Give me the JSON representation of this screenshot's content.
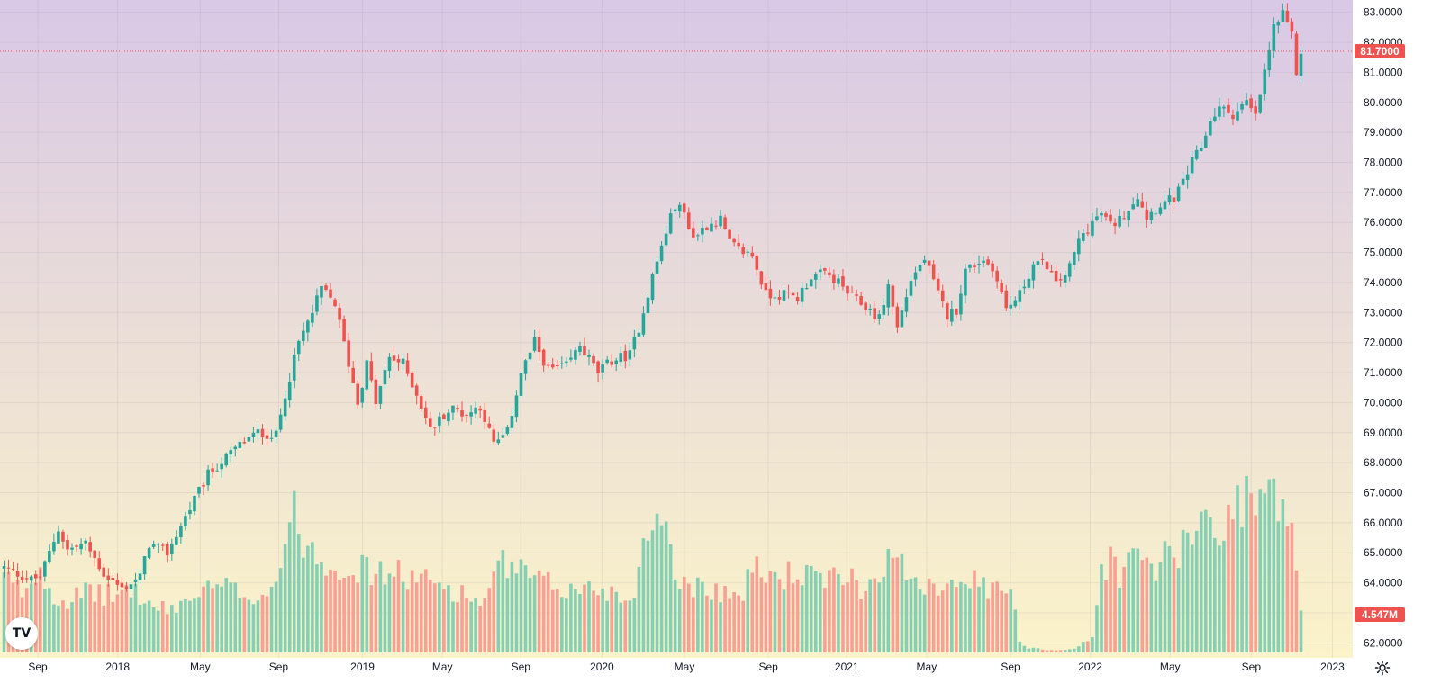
{
  "chart_data": {
    "type": "candlestick",
    "title": "",
    "interval": "1W",
    "price_axis": {
      "ylim": [
        61.5,
        83.2
      ],
      "ticks": [
        "62.0000",
        "63.0000",
        "64.0000",
        "65.0000",
        "66.0000",
        "67.0000",
        "68.0000",
        "69.0000",
        "70.0000",
        "71.0000",
        "72.0000",
        "73.0000",
        "74.0000",
        "75.0000",
        "76.0000",
        "77.0000",
        "78.0000",
        "79.0000",
        "80.0000",
        "81.0000",
        "82.0000",
        "83.0000"
      ]
    },
    "time_axis": {
      "labels": [
        "Sep",
        "2018",
        "May",
        "Sep",
        "2019",
        "May",
        "Sep",
        "2020",
        "May",
        "Sep",
        "2021",
        "May",
        "Sep",
        "2022",
        "May",
        "Sep",
        "2023"
      ]
    },
    "last_price": {
      "value": 81.7,
      "label": "81.7000"
    },
    "last_volume": {
      "value": 4.547,
      "label": "4.547M"
    },
    "volume_max_m": 38,
    "colors": {
      "up": "#26a69a",
      "down": "#ef5350",
      "up_volume": "#86cfb2",
      "down_volume": "#f7a093",
      "bg_top": "#d9c8e6",
      "bg_bottom": "#fbf3c9"
    },
    "close_anchors": [
      [
        0,
        64.5
      ],
      [
        6,
        64.1
      ],
      [
        8,
        64.2
      ],
      [
        12,
        65.8
      ],
      [
        14,
        65.1
      ],
      [
        18,
        65.3
      ],
      [
        22,
        64.3
      ],
      [
        26,
        63.8
      ],
      [
        30,
        64.2
      ],
      [
        32,
        65.3
      ],
      [
        36,
        65.0
      ],
      [
        40,
        66.2
      ],
      [
        45,
        67.6
      ],
      [
        52,
        68.6
      ],
      [
        56,
        69.0
      ],
      [
        60,
        68.9
      ],
      [
        62,
        70.3
      ],
      [
        65,
        72.0
      ],
      [
        68,
        73.0
      ],
      [
        70,
        73.8
      ],
      [
        73,
        73.3
      ],
      [
        76,
        71.3
      ],
      [
        78,
        70.0
      ],
      [
        80,
        71.3
      ],
      [
        82,
        70.0
      ],
      [
        85,
        71.5
      ],
      [
        88,
        71.3
      ],
      [
        91,
        70.3
      ],
      [
        94,
        69.1
      ],
      [
        97,
        69.6
      ],
      [
        99,
        69.8
      ],
      [
        102,
        69.6
      ],
      [
        105,
        69.9
      ],
      [
        108,
        68.6
      ],
      [
        111,
        69.0
      ],
      [
        114,
        71.0
      ],
      [
        117,
        72.0
      ],
      [
        120,
        71.1
      ],
      [
        124,
        71.2
      ],
      [
        127,
        71.9
      ],
      [
        131,
        71.0
      ],
      [
        134,
        71.4
      ],
      [
        138,
        71.6
      ],
      [
        140,
        72.5
      ],
      [
        143,
        74.2
      ],
      [
        146,
        75.7
      ],
      [
        148,
        76.6
      ],
      [
        150,
        76.3
      ],
      [
        152,
        75.5
      ],
      [
        155,
        75.9
      ],
      [
        158,
        76.1
      ],
      [
        160,
        75.3
      ],
      [
        162,
        75.1
      ],
      [
        165,
        74.9
      ],
      [
        168,
        73.6
      ],
      [
        172,
        73.6
      ],
      [
        175,
        73.5
      ],
      [
        178,
        74.2
      ],
      [
        181,
        74.3
      ],
      [
        184,
        74.0
      ],
      [
        187,
        73.5
      ],
      [
        190,
        73.2
      ],
      [
        193,
        72.8
      ],
      [
        195,
        73.9
      ],
      [
        197,
        72.5
      ],
      [
        200,
        74.1
      ],
      [
        203,
        74.8
      ],
      [
        206,
        73.6
      ],
      [
        208,
        72.9
      ],
      [
        210,
        73.1
      ],
      [
        212,
        74.4
      ],
      [
        216,
        74.8
      ],
      [
        219,
        74.2
      ],
      [
        221,
        73.1
      ],
      [
        224,
        73.6
      ],
      [
        227,
        74.6
      ],
      [
        230,
        74.6
      ],
      [
        232,
        73.9
      ],
      [
        235,
        74.5
      ],
      [
        237,
        75.4
      ],
      [
        240,
        76.0
      ],
      [
        242,
        76.3
      ],
      [
        244,
        75.9
      ],
      [
        246,
        76.1
      ],
      [
        248,
        76.5
      ],
      [
        250,
        76.9
      ],
      [
        252,
        76.2
      ],
      [
        255,
        76.6
      ],
      [
        258,
        76.8
      ],
      [
        260,
        77.3
      ],
      [
        262,
        78.0
      ],
      [
        264,
        78.5
      ],
      [
        266,
        79.4
      ],
      [
        268,
        79.8
      ],
      [
        271,
        79.6
      ],
      [
        274,
        80.0
      ],
      [
        276,
        79.5
      ],
      [
        278,
        81.0
      ],
      [
        280,
        82.5
      ],
      [
        282,
        82.9
      ],
      [
        284,
        82.2
      ],
      [
        285,
        81.0
      ],
      [
        286,
        81.7
      ]
    ],
    "volume_anchors": [
      [
        0,
        16
      ],
      [
        4,
        13
      ],
      [
        8,
        18
      ],
      [
        12,
        11
      ],
      [
        16,
        12
      ],
      [
        20,
        13
      ],
      [
        24,
        12
      ],
      [
        28,
        14
      ],
      [
        32,
        10
      ],
      [
        36,
        9
      ],
      [
        40,
        11
      ],
      [
        44,
        13
      ],
      [
        48,
        14
      ],
      [
        52,
        13
      ],
      [
        56,
        12
      ],
      [
        60,
        15
      ],
      [
        62,
        25
      ],
      [
        64,
        29
      ],
      [
        66,
        25
      ],
      [
        70,
        20
      ],
      [
        74,
        19
      ],
      [
        78,
        18
      ],
      [
        82,
        17
      ],
      [
        86,
        17
      ],
      [
        90,
        16
      ],
      [
        94,
        15
      ],
      [
        98,
        14
      ],
      [
        102,
        12
      ],
      [
        106,
        11
      ],
      [
        110,
        19
      ],
      [
        114,
        17
      ],
      [
        118,
        15
      ],
      [
        122,
        14
      ],
      [
        126,
        13
      ],
      [
        130,
        14
      ],
      [
        134,
        13
      ],
      [
        138,
        11
      ],
      [
        142,
        25
      ],
      [
        144,
        33
      ],
      [
        146,
        27
      ],
      [
        148,
        19
      ],
      [
        150,
        14
      ],
      [
        154,
        15
      ],
      [
        158,
        13
      ],
      [
        162,
        12
      ],
      [
        166,
        18
      ],
      [
        170,
        16
      ],
      [
        174,
        17
      ],
      [
        178,
        16
      ],
      [
        182,
        15
      ],
      [
        186,
        17
      ],
      [
        190,
        13
      ],
      [
        194,
        20
      ],
      [
        198,
        18
      ],
      [
        202,
        16
      ],
      [
        206,
        14
      ],
      [
        210,
        17
      ],
      [
        214,
        15
      ],
      [
        218,
        13
      ],
      [
        222,
        14
      ],
      [
        224,
        2
      ],
      [
        226,
        1
      ],
      [
        228,
        1
      ],
      [
        230,
        0.5
      ],
      [
        232,
        0.5
      ],
      [
        234,
        0.6
      ],
      [
        236,
        0.8
      ],
      [
        238,
        2
      ],
      [
        240,
        3
      ],
      [
        242,
        18
      ],
      [
        244,
        20
      ],
      [
        246,
        17
      ],
      [
        248,
        19
      ],
      [
        250,
        21
      ],
      [
        252,
        19
      ],
      [
        254,
        18
      ],
      [
        256,
        21
      ],
      [
        258,
        20
      ],
      [
        260,
        22
      ],
      [
        262,
        25
      ],
      [
        264,
        28
      ],
      [
        266,
        30
      ],
      [
        268,
        27
      ],
      [
        270,
        28
      ],
      [
        272,
        32
      ],
      [
        274,
        35
      ],
      [
        276,
        31
      ],
      [
        278,
        34
      ],
      [
        280,
        33
      ],
      [
        282,
        31
      ],
      [
        284,
        28
      ],
      [
        286,
        8
      ]
    ]
  },
  "ui": {
    "logo_text": "TV",
    "settings_icon": "gear-icon"
  }
}
